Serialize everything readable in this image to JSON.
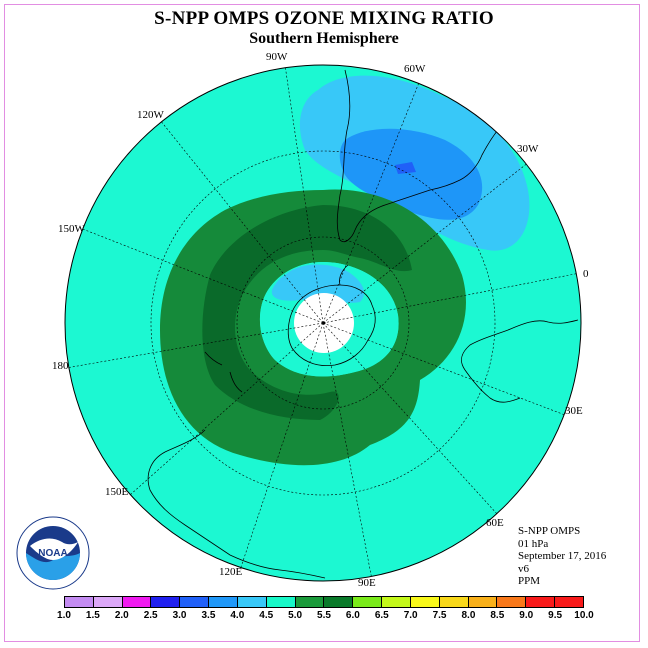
{
  "title": "S-NPP OMPS OZONE MIXING RATIO",
  "subtitle": "Southern Hemisphere",
  "longitude_labels": [
    "90W",
    "60W",
    "30W",
    "0",
    "30E",
    "60E",
    "90E",
    "120E",
    "150E",
    "180",
    "150W",
    "120W"
  ],
  "info": {
    "product": "S-NPP OMPS",
    "level": "01 hPa",
    "date": "September 17, 2016",
    "version": "v6",
    "units": "PPM"
  },
  "logo": {
    "text": "NOAA",
    "ring_text": "NATIONAL OCEANIC AND ATMOSPHERIC ADMINISTRATION · U.S. DEPARTMENT OF COMMERCE"
  },
  "colorbar": {
    "ticks": [
      "1.0",
      "1.5",
      "2.0",
      "2.5",
      "3.0",
      "3.5",
      "4.0",
      "4.5",
      "5.0",
      "5.5",
      "6.0",
      "6.5",
      "7.0",
      "7.5",
      "8.0",
      "8.5",
      "9.0",
      "9.5",
      "10.0"
    ],
    "colors": [
      "#c48cf2",
      "#dca8f8",
      "#f01af0",
      "#2020f0",
      "#2060f8",
      "#2098f8",
      "#38c8f8",
      "#18f8c8",
      "#1a9a3a",
      "#0a7a2a",
      "#7aea1a",
      "#c4f81a",
      "#f8f81a",
      "#f8d81a",
      "#f8b01a",
      "#f8781a",
      "#f81a1a",
      "#f81a1a",
      "#7a4a2a"
    ]
  },
  "map_colors": {
    "background": "#1cf8d2",
    "light_blue": "#38c8f8",
    "blue": "#1e96f8",
    "deep_blue": "#2060f8",
    "green": "#158a3a",
    "dark_green": "#0a6a2a",
    "hole": "#ffffff"
  }
}
